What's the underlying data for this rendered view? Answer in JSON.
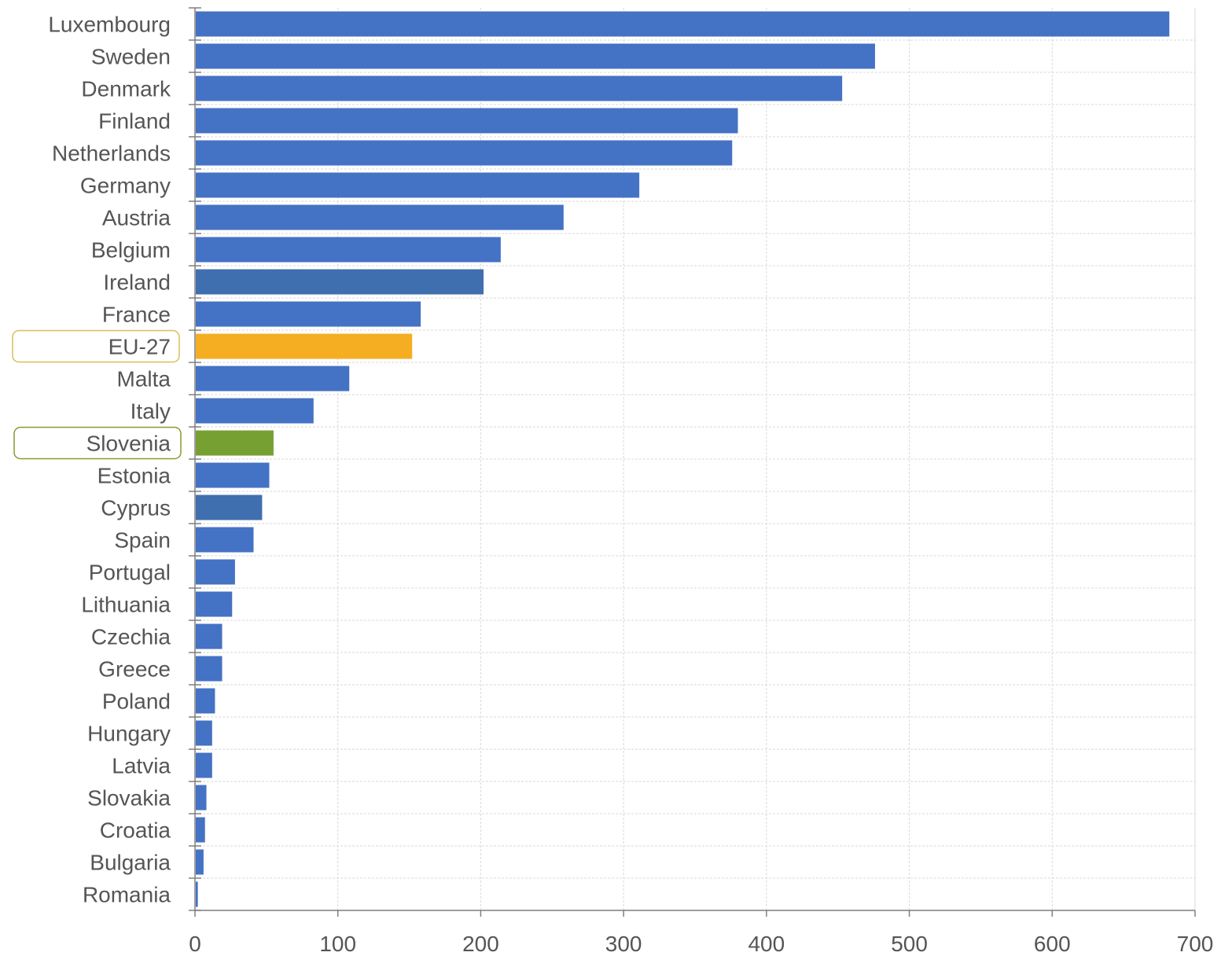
{
  "chart_data": {
    "type": "bar",
    "orientation": "horizontal",
    "title": "",
    "xlabel": "",
    "ylabel": "",
    "xlim": [
      0,
      700
    ],
    "xticks": [
      0,
      100,
      200,
      300,
      400,
      500,
      600,
      700
    ],
    "grid": true,
    "legend": "none",
    "categories": [
      "Luxembourg",
      "Sweden",
      "Denmark",
      "Finland",
      "Netherlands",
      "Germany",
      "Austria",
      "Belgium",
      "Ireland",
      "France",
      "EU-27",
      "Malta",
      "Italy",
      "Slovenia",
      "Estonia",
      "Cyprus",
      "Spain",
      "Portugal",
      "Lithuania",
      "Czechia",
      "Greece",
      "Poland",
      "Hungary",
      "Latvia",
      "Slovakia",
      "Croatia",
      "Bulgaria",
      "Romania"
    ],
    "values": [
      682,
      476,
      453,
      380,
      376,
      311,
      258,
      214,
      202,
      158,
      152,
      108,
      83,
      55,
      52,
      47,
      41,
      28,
      26,
      19,
      19,
      14,
      12,
      12,
      8,
      7,
      6,
      2
    ],
    "highlighted": [
      "EU-27",
      "Slovenia"
    ],
    "colors": {
      "default": "#4472c4",
      "alt_blue": "#3f6fae",
      "eu": "#f5ae22",
      "slovenia": "#77a033",
      "eu_outline": "#d4c15a",
      "slovenia_outline": "#8a9a2e",
      "grid": "#d9d9d9",
      "axis": "#7f7f7f",
      "text": "#555555"
    },
    "bar_colors": [
      "default",
      "default",
      "default",
      "default",
      "default",
      "default",
      "default",
      "default",
      "alt_blue",
      "default",
      "eu",
      "default",
      "default",
      "slovenia",
      "default",
      "alt_blue",
      "default",
      "default",
      "default",
      "default",
      "default",
      "default",
      "default",
      "default",
      "default",
      "default",
      "default",
      "default"
    ]
  }
}
